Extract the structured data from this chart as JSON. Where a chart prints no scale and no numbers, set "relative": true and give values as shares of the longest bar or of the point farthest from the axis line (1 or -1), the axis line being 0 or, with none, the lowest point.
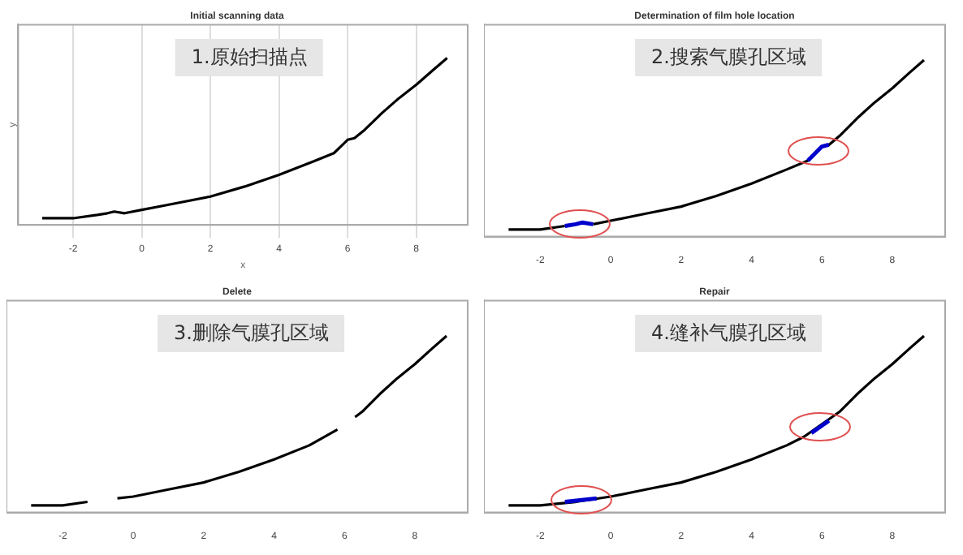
{
  "chart_data": [
    {
      "type": "line",
      "title": "Initial scanning data",
      "xlabel": "x",
      "ylabel": "y",
      "relative": true,
      "xlim": [
        -3.6,
        9.5
      ],
      "xticks": [
        -2,
        0,
        2,
        4,
        6,
        8
      ],
      "grid": "x",
      "annotations": [
        "1.原始扫描点"
      ],
      "x": [
        -2.9,
        -2,
        -1.3,
        -1,
        -0.8,
        -0.5,
        0,
        1,
        2,
        3,
        4,
        5,
        5.6,
        5.8,
        6,
        6.2,
        6.5,
        7,
        7.5,
        8,
        8.5,
        8.9
      ],
      "series": [
        {
          "color": "#000000",
          "values": [
            0.04,
            0.04,
            0.06,
            0.07,
            0.08,
            0.07,
            0.09,
            0.13,
            0.17,
            0.23,
            0.3,
            0.38,
            0.43,
            0.47,
            0.51,
            0.52,
            0.57,
            0.67,
            0.76,
            0.84,
            0.93,
            1
          ]
        }
      ]
    },
    {
      "type": "line",
      "title": "Determination of film hole location",
      "relative": true,
      "xlim": [
        -3.6,
        9.5
      ],
      "xticks": [
        -2,
        0,
        2,
        4,
        6,
        8
      ],
      "annotations": [
        "2.搜索气膜孔区域"
      ],
      "x": [
        -2.9,
        -2,
        -1.3,
        -1,
        -0.8,
        -0.5,
        0,
        1,
        2,
        3,
        4,
        5,
        5.6,
        5.8,
        6,
        6.2,
        6.5,
        7,
        7.5,
        8,
        8.5,
        8.9
      ],
      "series": [
        {
          "color": "#000000",
          "values": [
            0.04,
            0.04,
            0.06,
            null,
            null,
            0.07,
            0.09,
            0.13,
            0.17,
            0.23,
            0.3,
            0.38,
            0.43,
            0.47,
            0.51,
            0.52,
            0.57,
            0.67,
            0.76,
            0.84,
            0.93,
            1
          ]
        },
        {
          "color": "#0000cc",
          "x": [
            -1.3,
            -1,
            -0.8,
            -0.5,
            2,
            5.6,
            5.8,
            6,
            6.2
          ],
          "values": [
            0.06,
            0.07,
            0.08,
            0.07,
            null,
            0.43,
            0.47,
            0.51,
            0.52
          ]
        }
      ]
    },
    {
      "type": "line",
      "title": "Delete",
      "relative": true,
      "xlim": [
        -3.6,
        9.5
      ],
      "xticks": [
        -2,
        0,
        2,
        4,
        6,
        8
      ],
      "annotations": [
        "3.删除气膜孔区域"
      ],
      "x": [
        -2.9,
        -2,
        -1.3,
        -0.9,
        -0.45,
        0,
        1,
        2,
        3,
        4,
        5,
        5.8,
        6.05,
        6.3,
        6.5,
        7,
        7.5,
        8,
        8.5,
        8.9
      ],
      "series": [
        {
          "color": "#000000",
          "values": [
            0.04,
            0.04,
            0.06,
            null,
            0.08,
            0.09,
            0.13,
            0.17,
            0.23,
            0.3,
            0.38,
            0.47,
            null,
            0.54,
            0.57,
            0.67,
            0.76,
            0.84,
            0.93,
            1
          ]
        }
      ]
    },
    {
      "type": "line",
      "title": "Repair",
      "relative": true,
      "xlim": [
        -3.6,
        9.5
      ],
      "xticks": [
        -2,
        0,
        2,
        4,
        6,
        8
      ],
      "annotations": [
        "4.缝补气膜孔区域"
      ],
      "x": [
        -2.9,
        -2,
        -1,
        0,
        1,
        2,
        3,
        4,
        5,
        5.5,
        6,
        6.5,
        7,
        7.5,
        8,
        8.5,
        8.9
      ],
      "series": [
        {
          "color": "#000000",
          "values": [
            0.04,
            0.04,
            0.06,
            0.09,
            0.13,
            0.17,
            0.23,
            0.3,
            0.38,
            0.43,
            0.5,
            0.57,
            0.67,
            0.76,
            0.84,
            0.93,
            1
          ]
        },
        {
          "color": "#0000cc",
          "x": [
            -1.3,
            -0.4,
            2,
            5.7,
            6.2
          ],
          "values": [
            0.06,
            0.08,
            null,
            0.45,
            0.52
          ]
        }
      ]
    }
  ]
}
